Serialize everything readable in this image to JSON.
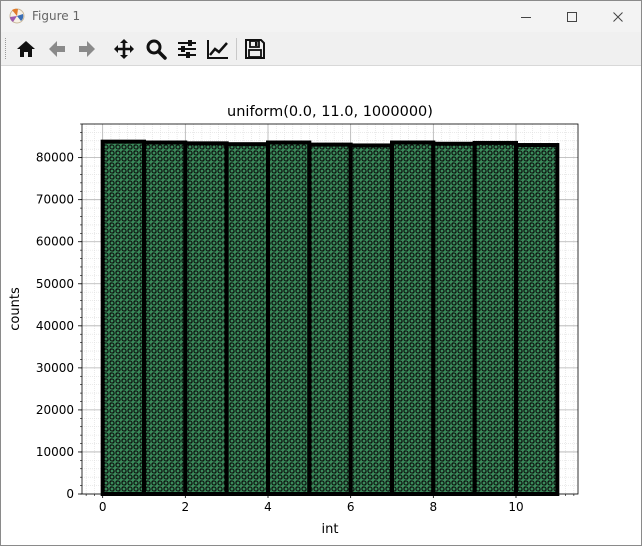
{
  "window": {
    "title": "Figure 1"
  },
  "toolbar": {
    "buttons": [
      {
        "icon": "home-icon",
        "tooltip": "Home"
      },
      {
        "icon": "back-arrow-icon",
        "tooltip": "Back"
      },
      {
        "icon": "forward-arrow-icon",
        "tooltip": "Forward"
      },
      {
        "icon": "pan-move-icon",
        "tooltip": "Pan"
      },
      {
        "icon": "zoom-magnifier-icon",
        "tooltip": "Zoom"
      },
      {
        "icon": "subplots-sliders-icon",
        "tooltip": "Subplots"
      },
      {
        "icon": "edit-axes-line-icon",
        "tooltip": "Customize"
      },
      {
        "icon": "save-floppy-icon",
        "tooltip": "Save"
      }
    ]
  },
  "colors": {
    "bar_fill": "#3a8a5a",
    "bar_edge": "#000000",
    "hatch_ring": "#0a0a0a",
    "grid_major": "#b0b0b0",
    "grid_minor": "#dddddd"
  },
  "chart_data": {
    "type": "bar",
    "title": "uniform(0.0, 11.0, 1000000)",
    "xlabel": "int",
    "ylabel": "counts",
    "x": [
      0,
      1,
      2,
      3,
      4,
      5,
      6,
      7,
      8,
      9,
      10
    ],
    "bin_width": 1,
    "values": [
      83800,
      83600,
      83400,
      83200,
      83600,
      83100,
      82900,
      83600,
      83300,
      83500,
      83000
    ],
    "xlim": [
      -0.5,
      11.5
    ],
    "ylim": [
      0,
      88000
    ],
    "xticks": [
      0,
      2,
      4,
      6,
      8,
      10
    ],
    "yticks": [
      0,
      10000,
      20000,
      30000,
      40000,
      50000,
      60000,
      70000,
      80000
    ],
    "grid": true,
    "minor_grid": true,
    "hatch": "circles",
    "legend": "none"
  }
}
